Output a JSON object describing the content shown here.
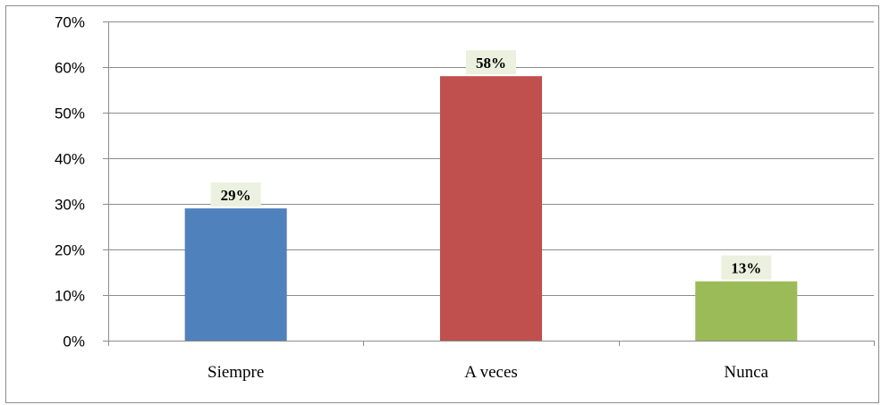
{
  "chart_data": {
    "type": "bar",
    "categories": [
      "Siempre",
      "A veces",
      "Nunca"
    ],
    "values": [
      29,
      58,
      13
    ],
    "data_labels": [
      "29%",
      "58%",
      "13%"
    ],
    "colors": [
      "#4f81bd",
      "#c0504d",
      "#9bbb59"
    ],
    "ylim": [
      0,
      70
    ],
    "yticks": [
      0,
      10,
      20,
      30,
      40,
      50,
      60,
      70
    ],
    "ytick_labels": [
      "0%",
      "10%",
      "20%",
      "30%",
      "40%",
      "50%",
      "60%",
      "70%"
    ],
    "grid": true,
    "legend": "none",
    "title": "",
    "xlabel": "",
    "ylabel": "",
    "label_background": "#ebf1de"
  }
}
